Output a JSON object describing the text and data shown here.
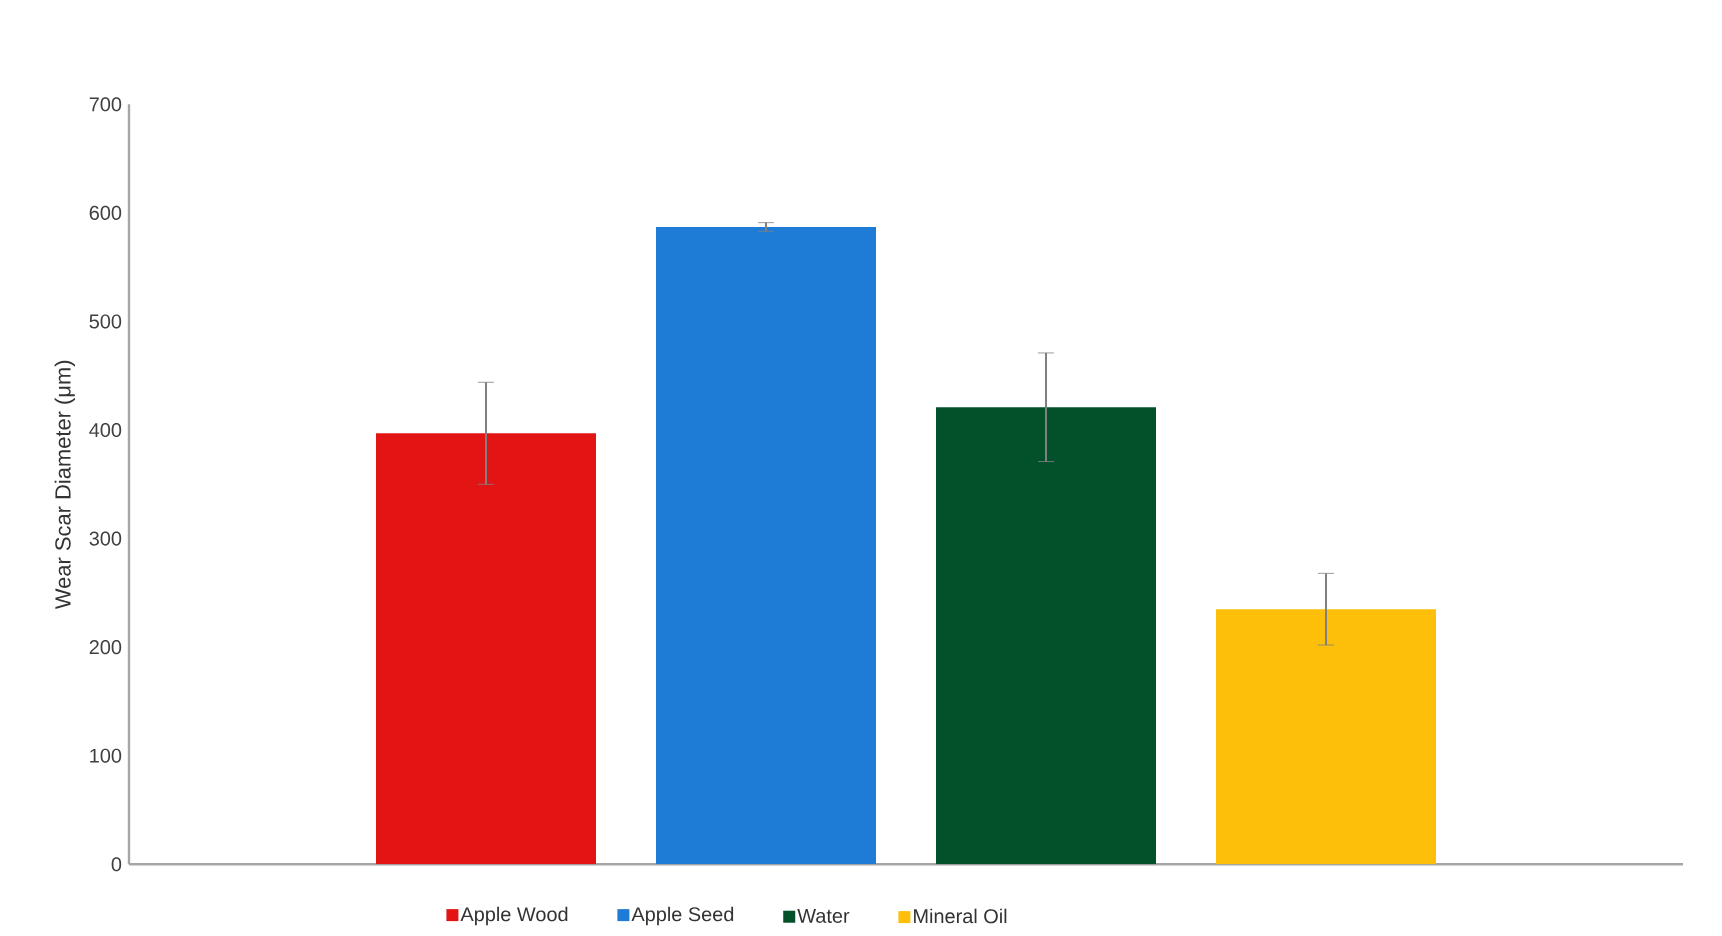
{
  "chart_data": {
    "type": "bar",
    "ylabel": "Wear Scar Diameter (μm)",
    "categories": [
      null
    ],
    "series": [
      {
        "name": "Apple Wood",
        "color": "#e21414",
        "values": [
          397
        ],
        "errors": [
          47
        ]
      },
      {
        "name": "Apple Seed",
        "color": "#1e7bd6",
        "values": [
          587
        ],
        "errors": [
          4
        ]
      },
      {
        "name": "Water",
        "color": "#02512b",
        "values": [
          421
        ],
        "errors": [
          50
        ]
      },
      {
        "name": "Mineral Oil",
        "color": "#fdbf0a",
        "values": [
          235
        ],
        "errors": [
          33
        ]
      }
    ],
    "ylim": [
      0,
      700
    ],
    "yticks": [
      0,
      100,
      200,
      300,
      400,
      500,
      600,
      700
    ],
    "tick_labels": "y",
    "legend": "bottom"
  }
}
